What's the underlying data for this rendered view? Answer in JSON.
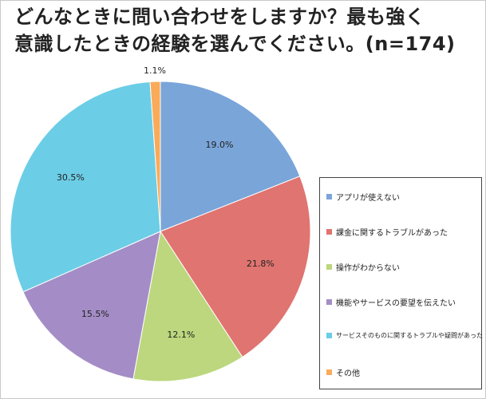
{
  "title": {
    "line1": "どんなときに問い合わせをしますか？最も強く",
    "line2": "意識したときの経験を選んでください。(n=174)"
  },
  "chart_data": {
    "type": "pie",
    "slices": [
      {
        "label": "アプリが使えない",
        "value": 19.0,
        "display": "19.0%",
        "color": "#7aa5d9"
      },
      {
        "label": "課金に関するトラブルがあった",
        "value": 21.8,
        "display": "21.8%",
        "color": "#e07470"
      },
      {
        "label": "操作がわからない",
        "value": 12.1,
        "display": "12.1%",
        "color": "#bcd77d"
      },
      {
        "label": "機能やサービスの要望を伝えたい",
        "value": 15.5,
        "display": "15.5%",
        "color": "#a48dc6"
      },
      {
        "label": "サービスそのものに関するトラブルや疑問があった",
        "value": 30.5,
        "display": "30.5%",
        "color": "#6ccde6"
      },
      {
        "label": "その他",
        "value": 1.1,
        "display": "1.1%",
        "color": "#f9ab5a"
      }
    ],
    "legend_position": "right"
  }
}
